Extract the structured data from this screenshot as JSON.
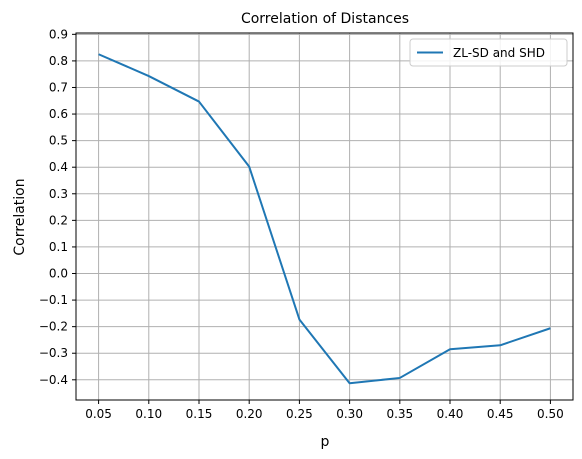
{
  "chart_data": {
    "type": "line",
    "title": "Correlation of Distances",
    "xlabel": "p",
    "ylabel": "Correlation",
    "x": [
      0.05,
      0.1,
      0.15,
      0.2,
      0.25,
      0.3,
      0.35,
      0.4,
      0.45,
      0.5
    ],
    "xticks": [
      "0.05",
      "0.10",
      "0.15",
      "0.20",
      "0.25",
      "0.30",
      "0.35",
      "0.40",
      "0.45",
      "0.50"
    ],
    "yticks": [
      "0.9",
      "0.8",
      "0.7",
      "0.6",
      "0.5",
      "0.4",
      "0.3",
      "0.2",
      "0.1",
      "0.0",
      "−0.1",
      "−0.2",
      "−0.3",
      "−0.4"
    ],
    "ytick_values": [
      0.9,
      0.8,
      0.7,
      0.6,
      0.5,
      0.4,
      0.3,
      0.2,
      0.1,
      0.0,
      -0.1,
      -0.2,
      -0.3,
      -0.4
    ],
    "xlim": [
      0.0275,
      0.5225
    ],
    "ylim": [
      -0.476,
      0.905
    ],
    "grid": true,
    "legend_position": "top-right",
    "series": [
      {
        "name": "ZL-SD and SHD",
        "color": "#1f77b4",
        "values": [
          0.825,
          0.743,
          0.647,
          0.402,
          -0.173,
          -0.413,
          -0.393,
          -0.285,
          -0.27,
          -0.206
        ]
      }
    ]
  }
}
